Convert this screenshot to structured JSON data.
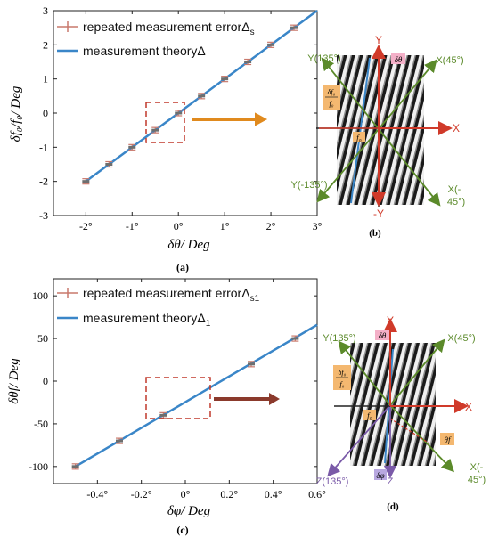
{
  "chart_data": [
    {
      "type": "line",
      "panel_label": "(a)",
      "xlabel": "δθ/ Deg",
      "ylabel": "δf₀/f₀/ Deg",
      "xlim": [
        -2.7,
        3.0
      ],
      "ylim": [
        -3,
        3
      ],
      "x_ticks": [
        -2,
        -1,
        0,
        1,
        2,
        3
      ],
      "x_tick_labels": [
        "-2°",
        "-1°",
        "0°",
        "1°",
        "2°",
        "3°"
      ],
      "y_ticks": [
        -3,
        -2,
        -1,
        0,
        1,
        2,
        3
      ],
      "y_tick_labels": [
        "-3",
        "-2",
        "-1",
        "0",
        "1",
        "2",
        "3"
      ],
      "legend_position": "top-left",
      "series": [
        {
          "name": "repeated measurement errorΔs",
          "kind": "errorbar",
          "x": [
            -2,
            -1.5,
            -1,
            -0.5,
            0,
            0.5,
            1,
            1.5,
            2,
            2.5
          ],
          "y": [
            -2,
            -1.5,
            -1,
            -0.5,
            0,
            0.5,
            1,
            1.5,
            2,
            2.5
          ]
        },
        {
          "name": "measurement theoryΔ",
          "kind": "line",
          "x": [
            -2,
            3
          ],
          "y": [
            -2,
            3
          ]
        }
      ],
      "legend_labels": {
        "s1_main": "repeated measurement error",
        "s1_sym": "Δ",
        "s1_sub": "s",
        "s2_main": "measurement theory",
        "s2_sym": "Δ",
        "s2_sub": ""
      }
    },
    {
      "type": "line",
      "panel_label": "(c)",
      "xlabel": "δφ/ Deg",
      "ylabel": "δθf/ Deg",
      "xlim": [
        -0.6,
        0.6
      ],
      "ylim": [
        -120,
        120
      ],
      "x_ticks": [
        -0.4,
        -0.2,
        0,
        0.2,
        0.4,
        0.6
      ],
      "x_tick_labels": [
        "-0.4°",
        "-0.2°",
        "0°",
        "0.2°",
        "0.4°",
        "0.6°"
      ],
      "y_ticks": [
        -100,
        -50,
        0,
        50,
        100
      ],
      "y_tick_labels": [
        "-100",
        "-50",
        "0",
        "50",
        "100"
      ],
      "legend_position": "top-left",
      "series": [
        {
          "name": "repeated measurement errorΔs1",
          "kind": "errorbar",
          "x": [
            -0.5,
            -0.3,
            -0.1,
            0.3,
            0.5
          ],
          "y": [
            -100,
            -70,
            -40,
            20,
            50
          ]
        },
        {
          "name": "measurement theoryΔ1",
          "kind": "line",
          "x": [
            -0.5,
            0.6
          ],
          "y": [
            -100,
            66
          ]
        }
      ],
      "legend_labels": {
        "s1_main": "repeated measurement error",
        "s1_sym": "Δ",
        "s1_sub": "s1",
        "s2_main": "measurement theory",
        "s2_sym": "Δ",
        "s2_sub": "1"
      }
    }
  ],
  "diagram_b": {
    "panel_label": "(b)",
    "axis_labels": {
      "y": "Y",
      "neg_y": "-Y",
      "x": "X",
      "y135": "Y(135°)",
      "x45": "X(45°)",
      "yneg135": "Y(-135°)",
      "xneg45_a": "X(-",
      "xneg45_b": "45°)",
      "delta_theta": "δθ",
      "f0": "f₀",
      "frac_top": "δf₀",
      "frac_bot": "f₀"
    }
  },
  "diagram_d": {
    "panel_label": "(d)",
    "axis_labels": {
      "y": "Y",
      "x": "X",
      "y135": "Y(135°)",
      "x45": "X(45°)",
      "z135": "Z(135°)",
      "z": "Z",
      "xneg45_a": "X(-",
      "xneg45_b": "45°)",
      "delta_theta": "δθ",
      "delta_phi": "δφ",
      "theta_f": "θf",
      "f0": "f₀",
      "frac_top": "δf₀",
      "frac_bot": "f₀"
    }
  },
  "colors": {
    "line": "#3a86c8",
    "errorbar": "#c8786c",
    "marker": "#6e6e6e",
    "dash_box": "#c0392b",
    "arrow_a": "#e08a1e",
    "arrow_c": "#8b3a2c",
    "green_axis": "#5b8a2a",
    "red_axis": "#d03a2a",
    "purple_axis": "#7a5aa8",
    "label_bg": "#f4b0c8",
    "frac_bg": "#f4b870"
  }
}
